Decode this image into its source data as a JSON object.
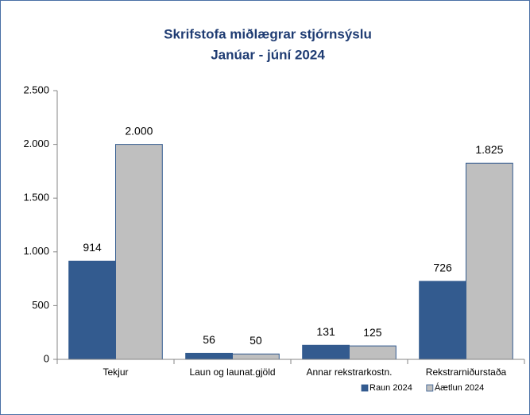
{
  "chart_data": {
    "type": "bar",
    "title": "Skrifstofa miðlægrar stjórnsýslu",
    "subtitle": "Janúar - júní 2024",
    "categories": [
      "Tekjur",
      "Laun og launat.gjöld",
      "Annar rekstrarkostn.",
      "Rekstrarniðurstaða"
    ],
    "series": [
      {
        "name": "Raun 2024",
        "color": "#335b8f",
        "values": [
          914,
          56,
          131,
          726
        ]
      },
      {
        "name": "Áætlun 2024",
        "color": "#bfbfbf",
        "values": [
          2000,
          50,
          125,
          1825
        ],
        "value_labels": [
          "2.000",
          "50",
          "125",
          "1.825"
        ]
      }
    ],
    "ylim": [
      0,
      2500
    ],
    "yticks": [
      0,
      500,
      {
        "value": 1000,
        "label": "1.000"
      },
      {
        "value": 1500,
        "label": "1.500"
      },
      {
        "value": 2000,
        "label": "2.000"
      },
      {
        "value": 2500,
        "label": "2.500"
      }
    ],
    "grid": false,
    "legend": "bottom-right"
  }
}
